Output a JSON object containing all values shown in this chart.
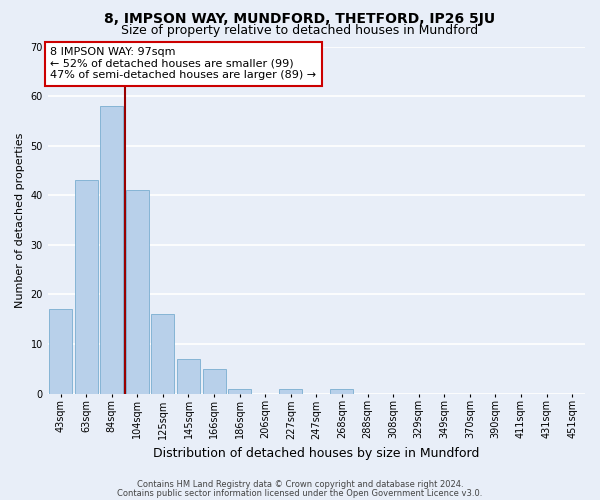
{
  "title": "8, IMPSON WAY, MUNDFORD, THETFORD, IP26 5JU",
  "subtitle": "Size of property relative to detached houses in Mundford",
  "xlabel": "Distribution of detached houses by size in Mundford",
  "ylabel": "Number of detached properties",
  "bar_labels": [
    "43sqm",
    "63sqm",
    "84sqm",
    "104sqm",
    "125sqm",
    "145sqm",
    "166sqm",
    "186sqm",
    "206sqm",
    "227sqm",
    "247sqm",
    "268sqm",
    "288sqm",
    "308sqm",
    "329sqm",
    "349sqm",
    "370sqm",
    "390sqm",
    "411sqm",
    "431sqm",
    "451sqm"
  ],
  "bar_values": [
    17,
    43,
    58,
    41,
    16,
    7,
    5,
    1,
    0,
    1,
    0,
    1,
    0,
    0,
    0,
    0,
    0,
    0,
    0,
    0,
    0
  ],
  "bar_color": "#b8d0ea",
  "bar_edge_color": "#7aaed0",
  "ylim": [
    0,
    70
  ],
  "yticks": [
    0,
    10,
    20,
    30,
    40,
    50,
    60,
    70
  ],
  "vline_x": 2.5,
  "vline_color": "#990000",
  "annotation_title": "8 IMPSON WAY: 97sqm",
  "annotation_line1": "← 52% of detached houses are smaller (99)",
  "annotation_line2": "47% of semi-detached houses are larger (89) →",
  "annotation_box_facecolor": "#ffffff",
  "annotation_box_edgecolor": "#cc0000",
  "footer1": "Contains HM Land Registry data © Crown copyright and database right 2024.",
  "footer2": "Contains public sector information licensed under the Open Government Licence v3.0.",
  "bg_color": "#e8eef8",
  "plot_bg_color": "#e8eef8",
  "grid_color": "#ffffff",
  "title_fontsize": 10,
  "subtitle_fontsize": 9,
  "xlabel_fontsize": 9,
  "ylabel_fontsize": 8,
  "tick_fontsize": 7,
  "annotation_fontsize": 8,
  "footer_fontsize": 6
}
